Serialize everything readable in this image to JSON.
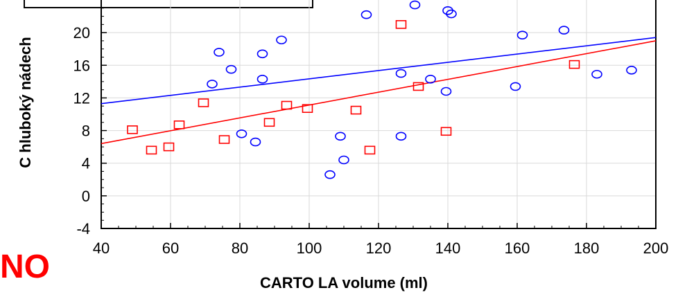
{
  "overlay_text": "NO",
  "chart_data": {
    "type": "scatter",
    "xlabel": "CARTO LA volume (ml)",
    "ylabel": "C hluboký nádech",
    "xlim": [
      40,
      200
    ],
    "ylim": [
      -4,
      24
    ],
    "x_ticks": [
      "40",
      "60",
      "80",
      "100",
      "120",
      "140",
      "160",
      "180",
      "200"
    ],
    "y_ticks": [
      "-4",
      "0",
      "4",
      "8",
      "12",
      "16",
      "20"
    ],
    "grid": true,
    "legend": "top-left (cropped)",
    "series": [
      {
        "marker": "circle",
        "color": "#0000ff",
        "points": [
          [
            72,
            13.7
          ],
          [
            74,
            17.6
          ],
          [
            77.5,
            15.5
          ],
          [
            80.5,
            7.6
          ],
          [
            84.5,
            6.6
          ],
          [
            86.5,
            17.4
          ],
          [
            86.5,
            14.3
          ],
          [
            92,
            19.1
          ],
          [
            106,
            2.6
          ],
          [
            109,
            7.3
          ],
          [
            110,
            4.4
          ],
          [
            116.5,
            22.2
          ],
          [
            126.5,
            15.0
          ],
          [
            126.5,
            7.3
          ],
          [
            130.5,
            23.4
          ],
          [
            135,
            14.3
          ],
          [
            139.5,
            12.8
          ],
          [
            140,
            22.7
          ],
          [
            141,
            22.3
          ],
          [
            159.5,
            13.4
          ],
          [
            161.5,
            19.7
          ],
          [
            173.5,
            20.3
          ],
          [
            183,
            14.9
          ],
          [
            193,
            15.4
          ]
        ],
        "trendline": [
          [
            40,
            11.3
          ],
          [
            200,
            19.4
          ]
        ]
      },
      {
        "marker": "square",
        "color": "#ff0000",
        "points": [
          [
            49,
            8.1
          ],
          [
            54.5,
            5.6
          ],
          [
            59.5,
            6.0
          ],
          [
            62.5,
            8.7
          ],
          [
            69.5,
            11.4
          ],
          [
            75.5,
            6.9
          ],
          [
            88.5,
            9.0
          ],
          [
            93.5,
            11.1
          ],
          [
            99.5,
            10.7
          ],
          [
            113.5,
            10.5
          ],
          [
            117.5,
            5.6
          ],
          [
            126.5,
            21.0
          ],
          [
            131.5,
            13.4
          ],
          [
            139.5,
            7.9
          ],
          [
            176.5,
            16.1
          ]
        ],
        "trendline": [
          [
            40,
            6.4
          ],
          [
            200,
            19.0
          ]
        ]
      }
    ]
  }
}
